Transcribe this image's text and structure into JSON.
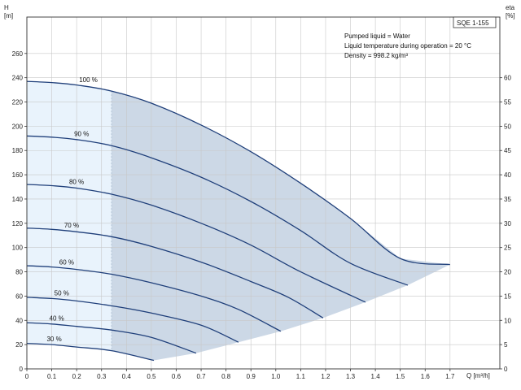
{
  "chart_data": {
    "type": "line",
    "title": "SQE 1-155",
    "xlabel": "Q [m³/h]",
    "ylabel_left": [
      "H",
      "[m]"
    ],
    "ylabel_right": [
      "eta",
      "[%]"
    ],
    "xlim": [
      0,
      1.9
    ],
    "ylim": [
      0,
      290
    ],
    "ylim_right": [
      0,
      72.5
    ],
    "x_ticks": [
      "0",
      "0.1",
      "0.2",
      "0.3",
      "0.4",
      "0.5",
      "0.6",
      "0.7",
      "0.8",
      "0.9",
      "1.0",
      "1.1",
      "1.2",
      "1.3",
      "1.4",
      "1.5",
      "1.6",
      "1.7"
    ],
    "y_ticks": [
      "0",
      "20",
      "40",
      "60",
      "80",
      "100",
      "120",
      "140",
      "160",
      "180",
      "200",
      "220",
      "240",
      "260"
    ],
    "y_right_ticks": [
      "0",
      "5",
      "10",
      "15",
      "20",
      "25",
      "30",
      "35",
      "40",
      "45",
      "50",
      "55",
      "60"
    ],
    "grid": true,
    "recommended_min_flow": 0.34,
    "annotations": [
      "Pumped liquid = Water",
      "Liquid temperature during operation = 20 °C",
      "Density = 998.2 kg/m³"
    ],
    "series": [
      {
        "name": "100 %",
        "shaded": true,
        "label_q": 0.21,
        "points": [
          [
            0,
            237
          ],
          [
            0.1,
            236
          ],
          [
            0.2,
            234
          ],
          [
            0.34,
            229
          ],
          [
            0.5,
            219
          ],
          [
            0.7,
            201
          ],
          [
            0.9,
            179
          ],
          [
            1.1,
            153
          ],
          [
            1.3,
            124
          ],
          [
            1.5,
            91
          ],
          [
            1.7,
            86
          ]
        ]
      },
      {
        "name": "90 %",
        "label_q": 0.19,
        "points": [
          [
            0,
            192
          ],
          [
            0.1,
            191
          ],
          [
            0.2,
            189
          ],
          [
            0.34,
            184
          ],
          [
            0.5,
            174
          ],
          [
            0.7,
            158
          ],
          [
            0.9,
            138
          ],
          [
            1.1,
            114
          ],
          [
            1.3,
            87
          ],
          [
            1.53,
            69
          ]
        ]
      },
      {
        "name": "80 %",
        "label_q": 0.17,
        "points": [
          [
            0,
            152
          ],
          [
            0.1,
            151
          ],
          [
            0.2,
            149
          ],
          [
            0.34,
            144
          ],
          [
            0.5,
            135
          ],
          [
            0.7,
            120
          ],
          [
            0.9,
            102
          ],
          [
            1.1,
            80
          ],
          [
            1.36,
            55
          ]
        ]
      },
      {
        "name": "70 %",
        "label_q": 0.15,
        "points": [
          [
            0,
            116
          ],
          [
            0.1,
            115
          ],
          [
            0.2,
            113
          ],
          [
            0.34,
            109
          ],
          [
            0.5,
            101
          ],
          [
            0.7,
            88
          ],
          [
            0.9,
            72
          ],
          [
            1.05,
            59
          ],
          [
            1.19,
            42
          ]
        ]
      },
      {
        "name": "60 %",
        "label_q": 0.13,
        "points": [
          [
            0,
            85
          ],
          [
            0.1,
            84
          ],
          [
            0.2,
            82
          ],
          [
            0.34,
            78
          ],
          [
            0.5,
            71
          ],
          [
            0.7,
            60
          ],
          [
            0.85,
            49
          ],
          [
            1.02,
            31
          ]
        ]
      },
      {
        "name": "50 %",
        "label_q": 0.11,
        "points": [
          [
            0,
            59
          ],
          [
            0.1,
            58
          ],
          [
            0.2,
            56
          ],
          [
            0.34,
            52
          ],
          [
            0.5,
            46
          ],
          [
            0.7,
            36
          ],
          [
            0.85,
            22
          ]
        ]
      },
      {
        "name": "40 %",
        "label_q": 0.09,
        "points": [
          [
            0,
            38
          ],
          [
            0.1,
            37
          ],
          [
            0.2,
            35
          ],
          [
            0.34,
            32
          ],
          [
            0.5,
            26
          ],
          [
            0.68,
            13
          ]
        ]
      },
      {
        "name": "30 %",
        "label_q": 0.08,
        "points": [
          [
            0,
            21
          ],
          [
            0.1,
            20
          ],
          [
            0.2,
            18
          ],
          [
            0.34,
            15
          ],
          [
            0.51,
            7
          ]
        ]
      }
    ],
    "colors": {
      "curve": "#1f3f7a",
      "envelope_fill": "#ccd8e6",
      "low_flow_fill": "#e9f3fc",
      "grid": "#c8c8c8",
      "frame": "#333333"
    }
  }
}
